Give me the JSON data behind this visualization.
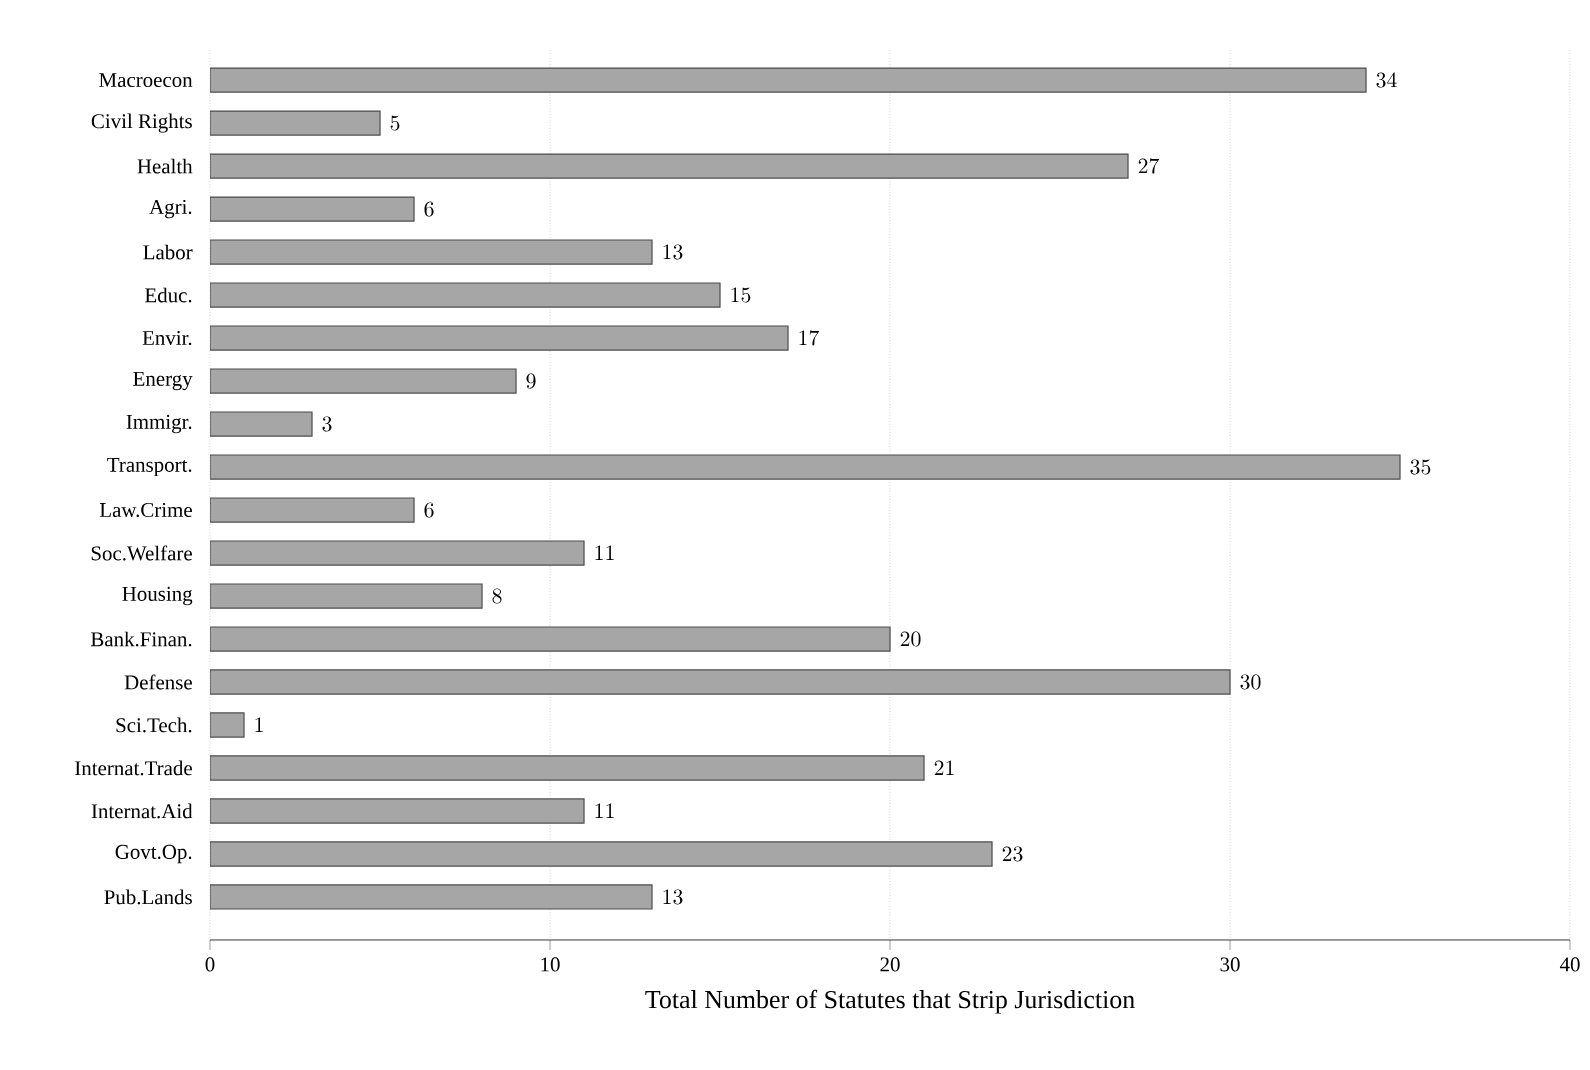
{
  "chart_data": {
    "type": "bar",
    "orientation": "horizontal",
    "xlabel": "Total Number of Statutes that Strip Jurisdiction",
    "categories": [
      "Macroecon",
      "Civil Rights",
      "Health",
      "Agri.",
      "Labor",
      "Educ.",
      "Envir.",
      "Energy",
      "Immigr.",
      "Transport.",
      "Law.Crime",
      "Soc.Welfare",
      "Housing",
      "Bank.Finan.",
      "Defense",
      "Sci.Tech.",
      "Internat.Trade",
      "Internat.Aid",
      "Govt.Op.",
      "Pub.Lands"
    ],
    "values": [
      34,
      5,
      27,
      6,
      13,
      15,
      17,
      9,
      3,
      35,
      6,
      11,
      8,
      20,
      30,
      1,
      21,
      11,
      23,
      13
    ],
    "color": "#a6a6a6",
    "xlim": [
      0,
      40
    ],
    "xticks": [
      0,
      10,
      20,
      30,
      40
    ],
    "grid": "x",
    "data_labels": true
  }
}
